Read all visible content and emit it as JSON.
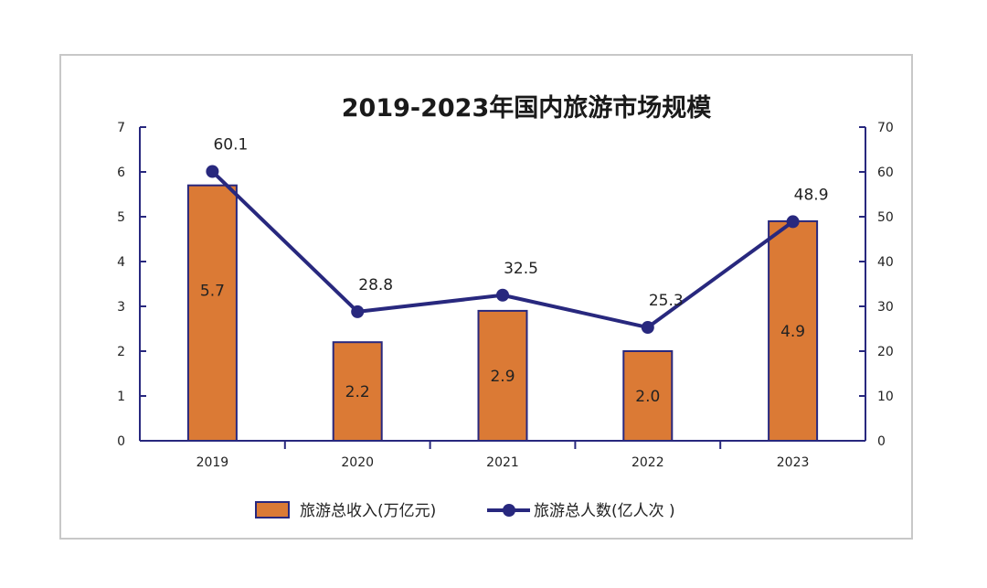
{
  "chart_data": {
    "type": "bar",
    "title": "2019-2023年国内旅游市场规模",
    "categories": [
      "2019",
      "2020",
      "2021",
      "2022",
      "2023"
    ],
    "series": [
      {
        "name": "旅游总收入(万亿元)",
        "type": "bar",
        "axis": "left",
        "values": [
          5.7,
          2.2,
          2.9,
          2.0,
          4.9
        ],
        "labels": [
          "5.7",
          "2.2",
          "2.9",
          "2.0",
          "4.9"
        ],
        "color": "#db7a35"
      },
      {
        "name": "旅游总人数(亿人次 )",
        "type": "line",
        "axis": "right",
        "values": [
          60.1,
          28.8,
          32.5,
          25.3,
          48.9
        ],
        "labels": [
          "60.1",
          "28.8",
          "32.5",
          "25.3",
          "48.9"
        ],
        "color": "#28287e"
      }
    ],
    "y_left": {
      "min": 0,
      "max": 7,
      "ticks": [
        "0",
        "1",
        "2",
        "3",
        "4",
        "5",
        "6",
        "7"
      ]
    },
    "y_right": {
      "min": 0,
      "max": 70,
      "ticks": [
        "0",
        "10",
        "20",
        "30",
        "40",
        "50",
        "60",
        "70"
      ]
    },
    "grid": false,
    "legend_position": "bottom-center",
    "axis_color": "#28287e"
  }
}
